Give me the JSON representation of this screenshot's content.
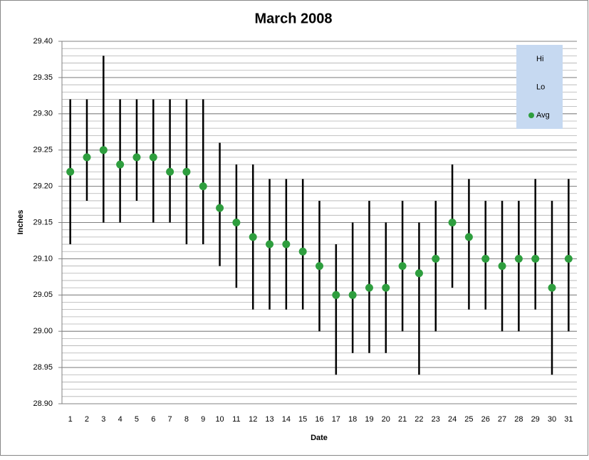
{
  "chart_data": {
    "type": "hilo",
    "title": "March 2008",
    "x_label": "Date",
    "y_label": "Inches",
    "categories": [
      "1",
      "2",
      "3",
      "4",
      "5",
      "6",
      "7",
      "8",
      "9",
      "10",
      "11",
      "12",
      "13",
      "14",
      "15",
      "16",
      "17",
      "18",
      "19",
      "20",
      "21",
      "22",
      "23",
      "24",
      "25",
      "26",
      "27",
      "28",
      "29",
      "30",
      "31"
    ],
    "series": [
      {
        "name": "Hi",
        "color": "#000000",
        "values": [
          29.32,
          29.32,
          29.38,
          29.32,
          29.32,
          29.32,
          29.32,
          29.32,
          29.32,
          29.26,
          29.23,
          29.23,
          29.21,
          29.21,
          29.21,
          29.18,
          29.12,
          29.15,
          29.18,
          29.15,
          29.18,
          29.15,
          29.18,
          29.23,
          29.21,
          29.18,
          29.18,
          29.18,
          29.21,
          29.18,
          29.21
        ]
      },
      {
        "name": "Lo",
        "color": "#000000",
        "values": [
          29.12,
          29.18,
          29.15,
          29.15,
          29.18,
          29.15,
          29.15,
          29.12,
          29.12,
          29.09,
          29.06,
          29.03,
          29.03,
          29.03,
          29.03,
          29.0,
          28.94,
          28.97,
          28.97,
          28.97,
          29.0,
          28.94,
          29.0,
          29.06,
          29.03,
          29.03,
          29.0,
          29.0,
          29.03,
          28.94,
          29.0
        ]
      },
      {
        "name": "Avg",
        "color": "#2e9e3e",
        "values": [
          29.22,
          29.24,
          29.25,
          29.23,
          29.24,
          29.24,
          29.22,
          29.22,
          29.2,
          29.17,
          29.15,
          29.13,
          29.12,
          29.12,
          29.11,
          29.09,
          29.05,
          29.05,
          29.06,
          29.06,
          29.09,
          29.08,
          29.1,
          29.15,
          29.13,
          29.1,
          29.09,
          29.1,
          29.1,
          29.06,
          29.1
        ]
      }
    ],
    "ylim": [
      28.9,
      29.4
    ],
    "yticks": [
      {
        "value": 28.9,
        "label": "28.90"
      },
      28.95,
      {
        "value": 29.0,
        "label": "29.00"
      },
      29.05,
      {
        "value": 29.1,
        "label": "29.10"
      },
      29.15,
      {
        "value": 29.2,
        "label": "29.20"
      },
      29.25,
      {
        "value": 29.3,
        "label": "29.30"
      },
      29.35,
      {
        "value": 29.4,
        "label": "29.40"
      }
    ],
    "grid": true,
    "minor_grid": 0.01,
    "legend": "upper right"
  }
}
